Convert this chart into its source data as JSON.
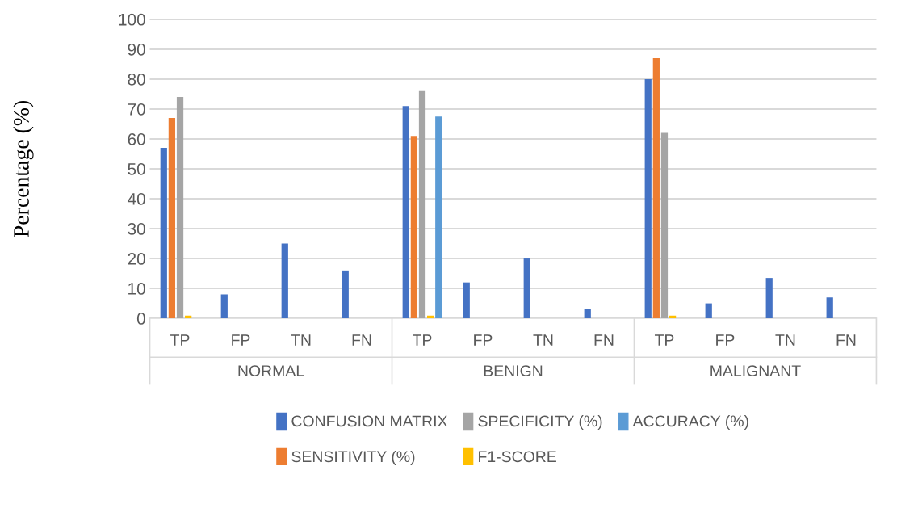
{
  "chart_data": {
    "type": "bar",
    "ylabel": "Percentage (%)",
    "categories": [
      "TP",
      "FP",
      "TN",
      "FN",
      "TP",
      "FP",
      "TN",
      "FN",
      "TP",
      "FP",
      "TN",
      "FN"
    ],
    "annotations": [
      "NORMAL",
      "BENIGN",
      "MALIGNANT"
    ],
    "series": [
      {
        "name": "CONFUSION MATRIX",
        "color": "#4472c4",
        "values": [
          57,
          8,
          25,
          16,
          71,
          12,
          20,
          3,
          80,
          5,
          13.5,
          7
        ]
      },
      {
        "name": "SENSITIVITY (%)",
        "color": "#ed7d31",
        "values": [
          67,
          null,
          null,
          null,
          61,
          null,
          null,
          null,
          87,
          null,
          null,
          null
        ]
      },
      {
        "name": "SPECIFICITY (%)",
        "color": "#a5a5a5",
        "values": [
          74,
          null,
          null,
          null,
          76,
          null,
          null,
          null,
          62,
          null,
          null,
          null
        ]
      },
      {
        "name": "F1-SCORE",
        "color": "#ffc000",
        "values": [
          0.9,
          null,
          null,
          null,
          0.9,
          null,
          null,
          null,
          0.9,
          null,
          null,
          null
        ]
      },
      {
        "name": "ACCURACY (%)",
        "color": "#5b9bd5",
        "values": [
          null,
          null,
          null,
          null,
          67.5,
          null,
          null,
          null,
          null,
          null,
          null,
          null
        ]
      }
    ],
    "ylim": [
      0,
      100
    ],
    "yticks": [
      0,
      10,
      20,
      30,
      40,
      50,
      60,
      70,
      80,
      90,
      100
    ],
    "grid": "y",
    "legend": "bottom"
  }
}
